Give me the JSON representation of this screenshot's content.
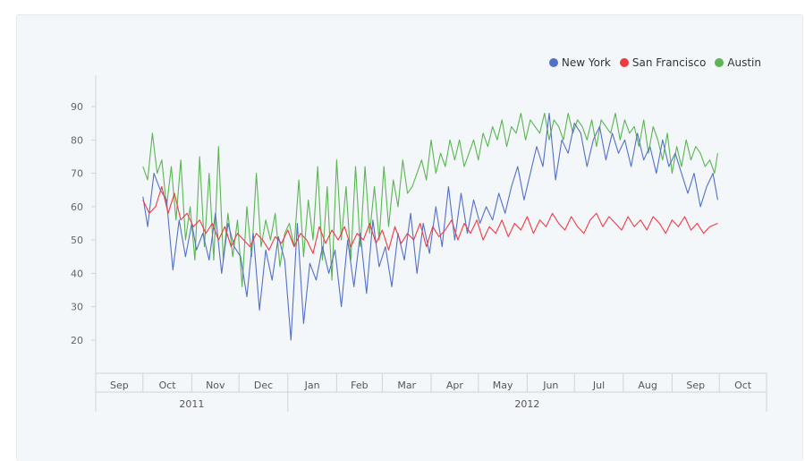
{
  "chart_data": {
    "type": "line",
    "title": "",
    "xlabel": "",
    "ylabel": "",
    "ylim": [
      10,
      100
    ],
    "y_ticks": [
      20,
      30,
      40,
      50,
      60,
      70,
      80,
      90
    ],
    "grid": false,
    "legend_position": "top-right",
    "x_months": [
      "Sep",
      "Oct",
      "Nov",
      "Dec",
      "Jan",
      "Feb",
      "Mar",
      "Apr",
      "May",
      "Jun",
      "Jul",
      "Aug",
      "Sep",
      "Oct"
    ],
    "x_years": [
      "2011",
      "2012"
    ],
    "x_range": [
      "2011-09-01",
      "2012-10-31"
    ],
    "series": [
      {
        "name": "New York",
        "color": "#5470c6",
        "x": [
          "2011-10-01",
          "2011-10-04",
          "2011-10-08",
          "2011-10-12",
          "2011-10-16",
          "2011-10-20",
          "2011-10-24",
          "2011-10-28",
          "2011-11-01",
          "2011-11-04",
          "2011-11-08",
          "2011-11-12",
          "2011-11-16",
          "2011-11-20",
          "2011-11-24",
          "2011-11-28",
          "2011-12-02",
          "2011-12-06",
          "2011-12-10",
          "2011-12-14",
          "2011-12-18",
          "2011-12-22",
          "2011-12-26",
          "2011-12-30",
          "2012-01-03",
          "2012-01-07",
          "2012-01-11",
          "2012-01-15",
          "2012-01-19",
          "2012-01-23",
          "2012-01-27",
          "2012-01-31",
          "2012-02-04",
          "2012-02-08",
          "2012-02-12",
          "2012-02-16",
          "2012-02-20",
          "2012-02-24",
          "2012-02-28",
          "2012-03-03",
          "2012-03-07",
          "2012-03-11",
          "2012-03-15",
          "2012-03-19",
          "2012-03-23",
          "2012-03-27",
          "2012-03-31",
          "2012-04-04",
          "2012-04-08",
          "2012-04-12",
          "2012-04-16",
          "2012-04-20",
          "2012-04-24",
          "2012-04-28",
          "2012-05-02",
          "2012-05-06",
          "2012-05-10",
          "2012-05-14",
          "2012-05-18",
          "2012-05-22",
          "2012-05-26",
          "2012-05-30",
          "2012-06-03",
          "2012-06-07",
          "2012-06-11",
          "2012-06-15",
          "2012-06-19",
          "2012-06-23",
          "2012-06-27",
          "2012-07-01",
          "2012-07-05",
          "2012-07-09",
          "2012-07-13",
          "2012-07-17",
          "2012-07-21",
          "2012-07-25",
          "2012-07-29",
          "2012-08-02",
          "2012-08-06",
          "2012-08-10",
          "2012-08-14",
          "2012-08-18",
          "2012-08-22",
          "2012-08-26",
          "2012-08-30",
          "2012-09-03",
          "2012-09-07",
          "2012-09-11",
          "2012-09-15",
          "2012-09-19",
          "2012-09-23",
          "2012-09-27",
          "2012-09-30"
        ],
        "values": [
          63,
          54,
          70,
          65,
          62,
          41,
          56,
          45,
          55,
          47,
          52,
          44,
          58,
          40,
          55,
          48,
          45,
          33,
          52,
          29,
          47,
          38,
          51,
          44,
          20,
          55,
          25,
          43,
          38,
          48,
          40,
          47,
          30,
          50,
          36,
          52,
          34,
          56,
          42,
          48,
          36,
          52,
          44,
          58,
          40,
          55,
          46,
          60,
          48,
          66,
          50,
          64,
          52,
          62,
          55,
          60,
          56,
          64,
          58,
          66,
          72,
          62,
          70,
          78,
          72,
          88,
          68,
          80,
          76,
          85,
          82,
          72,
          80,
          84,
          74,
          82,
          76,
          80,
          72,
          82,
          74,
          78,
          70,
          80,
          72,
          76,
          70,
          64,
          70,
          60,
          66,
          70,
          62
        ],
        "note": ""
      },
      {
        "name": "San Francisco",
        "color": "#ee3b42",
        "x": [
          "2011-10-01",
          "2011-10-05",
          "2011-10-09",
          "2011-10-13",
          "2011-10-17",
          "2011-10-21",
          "2011-10-25",
          "2011-10-29",
          "2011-11-02",
          "2011-11-06",
          "2011-11-10",
          "2011-11-14",
          "2011-11-18",
          "2011-11-22",
          "2011-11-26",
          "2011-11-30",
          "2011-12-04",
          "2011-12-08",
          "2011-12-12",
          "2011-12-16",
          "2011-12-20",
          "2011-12-24",
          "2011-12-28",
          "2012-01-01",
          "2012-01-05",
          "2012-01-09",
          "2012-01-13",
          "2012-01-17",
          "2012-01-21",
          "2012-01-25",
          "2012-01-29",
          "2012-02-02",
          "2012-02-06",
          "2012-02-10",
          "2012-02-14",
          "2012-02-18",
          "2012-02-22",
          "2012-02-26",
          "2012-03-01",
          "2012-03-05",
          "2012-03-09",
          "2012-03-13",
          "2012-03-17",
          "2012-03-21",
          "2012-03-25",
          "2012-03-29",
          "2012-04-02",
          "2012-04-06",
          "2012-04-10",
          "2012-04-14",
          "2012-04-18",
          "2012-04-22",
          "2012-04-26",
          "2012-04-30",
          "2012-05-04",
          "2012-05-08",
          "2012-05-12",
          "2012-05-16",
          "2012-05-20",
          "2012-05-24",
          "2012-05-28",
          "2012-06-01",
          "2012-06-05",
          "2012-06-09",
          "2012-06-13",
          "2012-06-17",
          "2012-06-21",
          "2012-06-25",
          "2012-06-29",
          "2012-07-03",
          "2012-07-07",
          "2012-07-11",
          "2012-07-15",
          "2012-07-19",
          "2012-07-23",
          "2012-07-27",
          "2012-07-31",
          "2012-08-04",
          "2012-08-08",
          "2012-08-12",
          "2012-08-16",
          "2012-08-20",
          "2012-08-24",
          "2012-08-28",
          "2012-09-01",
          "2012-09-05",
          "2012-09-09",
          "2012-09-13",
          "2012-09-17",
          "2012-09-21",
          "2012-09-25",
          "2012-09-30"
        ],
        "values": [
          62,
          58,
          60,
          66,
          58,
          64,
          56,
          58,
          54,
          56,
          52,
          55,
          50,
          54,
          48,
          52,
          50,
          48,
          52,
          50,
          47,
          51,
          49,
          53,
          48,
          52,
          50,
          46,
          54,
          49,
          53,
          50,
          54,
          48,
          52,
          50,
          55,
          49,
          53,
          47,
          54,
          49,
          52,
          50,
          55,
          48,
          54,
          51,
          53,
          56,
          50,
          55,
          52,
          56,
          50,
          54,
          52,
          56,
          51,
          55,
          53,
          57,
          52,
          56,
          54,
          58,
          55,
          53,
          57,
          54,
          52,
          56,
          58,
          54,
          57,
          55,
          53,
          57,
          54,
          56,
          53,
          57,
          55,
          52,
          56,
          54,
          57,
          53,
          55,
          52,
          54,
          55
        ]
      },
      {
        "name": "Austin",
        "color": "#5ab552",
        "x": [
          "2011-10-01",
          "2011-10-04",
          "2011-10-07",
          "2011-10-10",
          "2011-10-13",
          "2011-10-16",
          "2011-10-19",
          "2011-10-22",
          "2011-10-25",
          "2011-10-28",
          "2011-10-31",
          "2011-11-03",
          "2011-11-06",
          "2011-11-09",
          "2011-11-12",
          "2011-11-15",
          "2011-11-18",
          "2011-11-21",
          "2011-11-24",
          "2011-11-27",
          "2011-11-30",
          "2011-12-03",
          "2011-12-06",
          "2011-12-09",
          "2011-12-12",
          "2011-12-15",
          "2011-12-18",
          "2011-12-21",
          "2011-12-24",
          "2011-12-27",
          "2011-12-30",
          "2012-01-02",
          "2012-01-05",
          "2012-01-08",
          "2012-01-11",
          "2012-01-14",
          "2012-01-17",
          "2012-01-20",
          "2012-01-23",
          "2012-01-26",
          "2012-01-29",
          "2012-02-01",
          "2012-02-04",
          "2012-02-07",
          "2012-02-10",
          "2012-02-13",
          "2012-02-16",
          "2012-02-19",
          "2012-02-22",
          "2012-02-25",
          "2012-02-28",
          "2012-03-02",
          "2012-03-05",
          "2012-03-08",
          "2012-03-11",
          "2012-03-14",
          "2012-03-17",
          "2012-03-20",
          "2012-03-23",
          "2012-03-26",
          "2012-03-29",
          "2012-04-01",
          "2012-04-04",
          "2012-04-07",
          "2012-04-10",
          "2012-04-13",
          "2012-04-16",
          "2012-04-19",
          "2012-04-22",
          "2012-04-25",
          "2012-04-28",
          "2012-05-01",
          "2012-05-04",
          "2012-05-07",
          "2012-05-10",
          "2012-05-13",
          "2012-05-16",
          "2012-05-19",
          "2012-05-22",
          "2012-05-25",
          "2012-05-28",
          "2012-05-31",
          "2012-06-03",
          "2012-06-06",
          "2012-06-09",
          "2012-06-12",
          "2012-06-15",
          "2012-06-18",
          "2012-06-21",
          "2012-06-24",
          "2012-06-27",
          "2012-06-30",
          "2012-07-03",
          "2012-07-06",
          "2012-07-09",
          "2012-07-12",
          "2012-07-15",
          "2012-07-18",
          "2012-07-21",
          "2012-07-24",
          "2012-07-27",
          "2012-07-30",
          "2012-08-02",
          "2012-08-05",
          "2012-08-08",
          "2012-08-11",
          "2012-08-14",
          "2012-08-17",
          "2012-08-20",
          "2012-08-23",
          "2012-08-26",
          "2012-08-29",
          "2012-09-01",
          "2012-09-04",
          "2012-09-07",
          "2012-09-10",
          "2012-09-13",
          "2012-09-16",
          "2012-09-19",
          "2012-09-22",
          "2012-09-25",
          "2012-09-28",
          "2012-09-30"
        ],
        "values": [
          72,
          68,
          82,
          70,
          74,
          60,
          72,
          56,
          74,
          50,
          60,
          44,
          75,
          48,
          70,
          44,
          78,
          44,
          58,
          45,
          56,
          36,
          60,
          45,
          70,
          48,
          56,
          50,
          58,
          42,
          52,
          55,
          48,
          68,
          45,
          62,
          50,
          72,
          44,
          66,
          38,
          74,
          50,
          66,
          44,
          72,
          48,
          72,
          52,
          66,
          50,
          72,
          54,
          68,
          60,
          74,
          64,
          66,
          70,
          74,
          68,
          80,
          70,
          76,
          72,
          80,
          74,
          80,
          72,
          76,
          80,
          74,
          82,
          78,
          84,
          80,
          86,
          78,
          84,
          82,
          88,
          80,
          86,
          84,
          82,
          88,
          80,
          86,
          84,
          80,
          88,
          82,
          86,
          84,
          80,
          86,
          78,
          86,
          84,
          82,
          88,
          80,
          86,
          82,
          84,
          78,
          86,
          76,
          84,
          80,
          74,
          82,
          70,
          78,
          72,
          80,
          74,
          78,
          76,
          72,
          74,
          70,
          76
        ]
      }
    ]
  }
}
